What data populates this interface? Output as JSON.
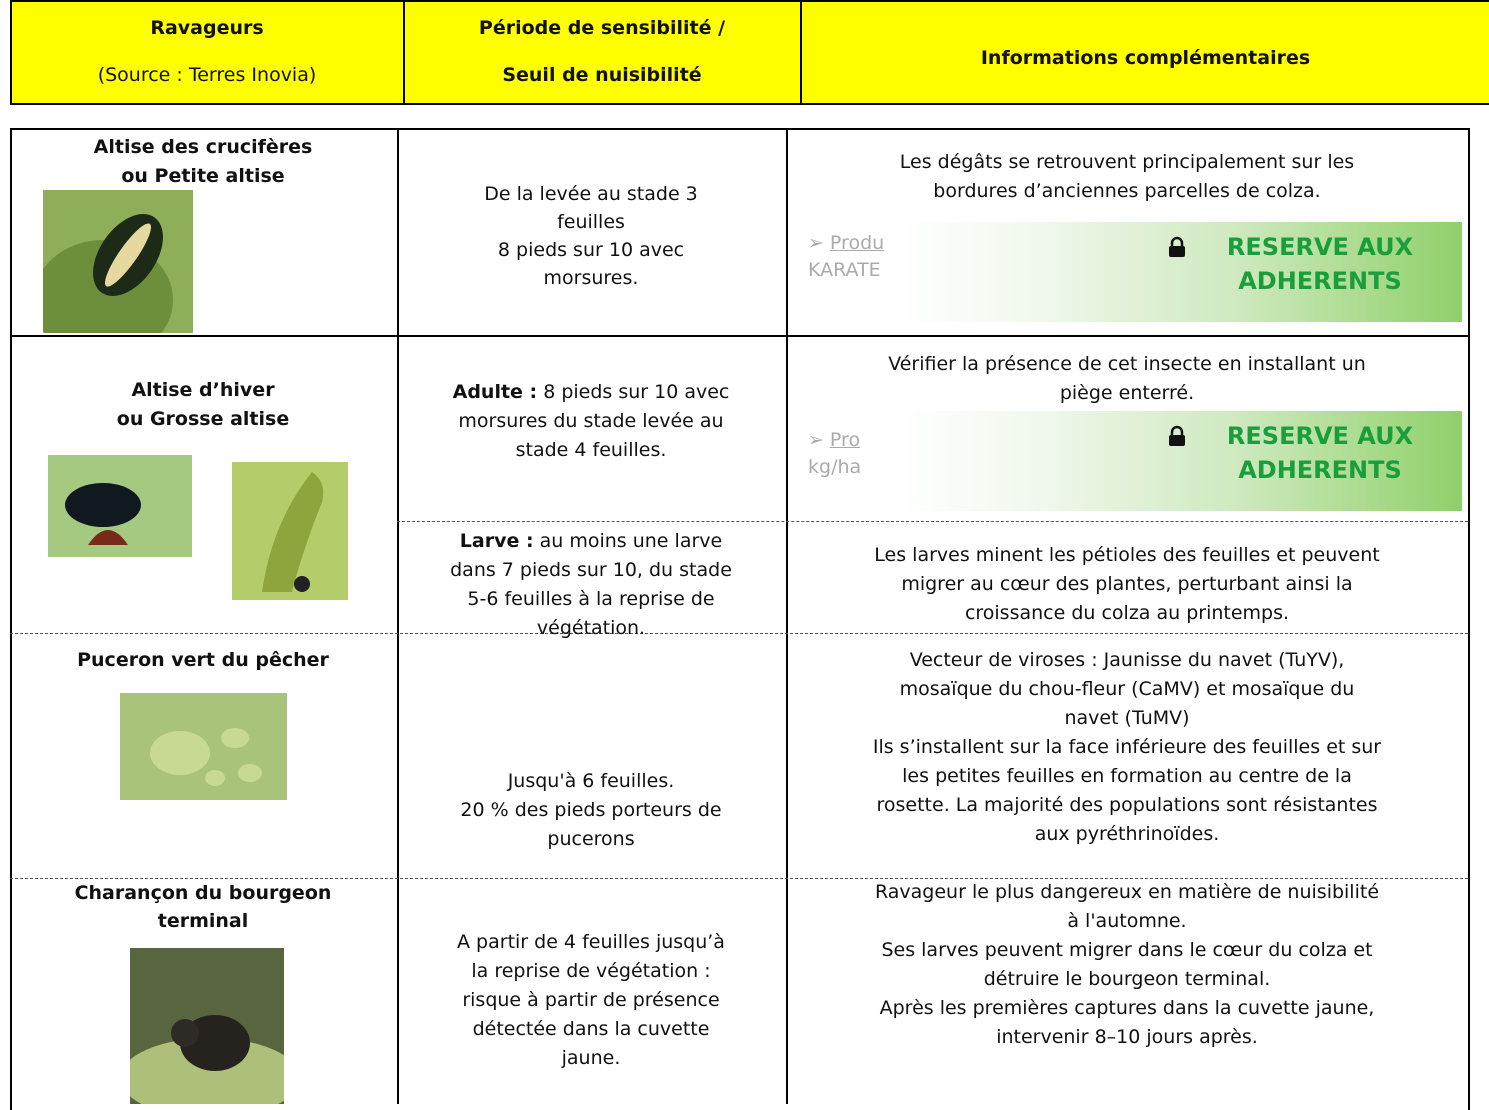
{
  "header": {
    "col1_title": "Ravageurs",
    "col1_source": "(Source : Terres Inovia)",
    "col2_lines": [
      "Période de sensibilité /",
      "Seuil de nuisibilité"
    ],
    "col3_title": "Informations complémentaires"
  },
  "rows": [
    {
      "pest": [
        "Altise des crucifères",
        "ou Petite altise"
      ],
      "period": [
        "De la levée au stade 3",
        "feuilles",
        "8 pieds sur 10 avec",
        "morsures."
      ],
      "info": [
        "Les dégâts se retrouvent principalement sur les",
        "bordures d’anciennes parcelles de colza."
      ],
      "hidden": [
        "Produ",
        "KARATE"
      ],
      "locked": [
        "RESERVE AUX",
        "ADHERENTS"
      ]
    },
    {
      "pest": [
        "Altise d’hiver",
        "ou Grosse altise"
      ],
      "stages": [
        {
          "label": "Adulte :",
          "lines": [
            "8 pieds sur 10 avec",
            "morsures du stade levée au",
            "stade 4 feuilles."
          ],
          "info": [
            "Vérifier la présence de cet insecte en installant un",
            "piège enterré."
          ],
          "hidden": [
            "Pro",
            "kg/ha"
          ],
          "locked": [
            "RESERVE AUX",
            "ADHERENTS"
          ]
        },
        {
          "label": "Larve :",
          "lines": [
            "au moins une larve",
            "dans 7 pieds sur 10, du stade",
            "5-6 feuilles à la reprise de",
            "végétation."
          ],
          "info": [
            "Les larves minent les pétioles des feuilles et peuvent",
            "migrer au cœur des plantes, perturbant ainsi la",
            "croissance du colza au printemps."
          ]
        }
      ]
    },
    {
      "pest": [
        "Puceron vert du pêcher"
      ],
      "period": [
        "Jusqu'à 6 feuilles.",
        "20 % des pieds porteurs de",
        "pucerons"
      ],
      "info": [
        "Vecteur de viroses : Jaunisse du navet (TuYV),",
        "mosaïque du chou-fleur (CaMV) et mosaïque du",
        "navet (TuMV)",
        "Ils s’installent sur la face inférieure des feuilles et sur",
        "les petites feuilles en formation au centre de la",
        "rosette. La majorité des populations sont résistantes",
        "aux pyréthrinoïdes."
      ]
    },
    {
      "pest": [
        "Charançon du bourgeon",
        "terminal"
      ],
      "period": [
        "A partir de 4 feuilles jusqu’à",
        "la reprise de végétation :",
        "risque à partir de présence",
        "détectée dans la cuvette",
        "jaune."
      ],
      "info": [
        "Ravageur le plus dangereux en matière de nuisibilité",
        "à l'automne.",
        "Ses larves peuvent migrer dans le cœur du colza et",
        "détruire le bourgeon terminal.",
        "Après les premières captures dans la cuvette jaune,",
        "intervenir 8–10 jours après."
      ]
    }
  ]
}
